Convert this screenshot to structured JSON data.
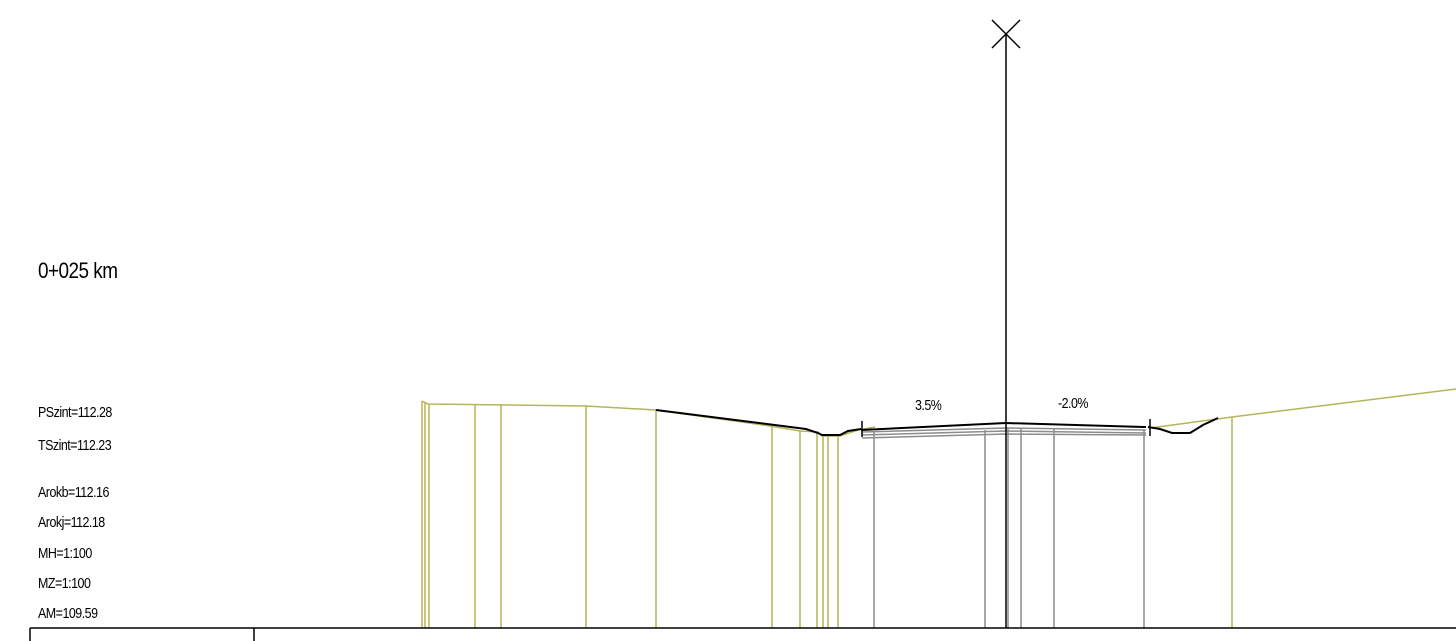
{
  "station": "0+025 km",
  "levels": {
    "pszint": "PSzint=112.28",
    "tszint": "TSzint=112.23",
    "arokb": "Arokb=112.16",
    "arokj": "Arokj=112.18",
    "mh": "MH=1:100",
    "mz": "MZ=1:100",
    "am": "AM=109.59"
  },
  "slopes": {
    "left": "3.5%",
    "right": "-2.0%"
  },
  "colors": {
    "terrain": "#b5b45a",
    "design_line": "#000000",
    "pavement_layer": "#8c8c8c",
    "background": "#ffffff"
  },
  "icons": {
    "axis_marker": "x-cross-icon"
  }
}
